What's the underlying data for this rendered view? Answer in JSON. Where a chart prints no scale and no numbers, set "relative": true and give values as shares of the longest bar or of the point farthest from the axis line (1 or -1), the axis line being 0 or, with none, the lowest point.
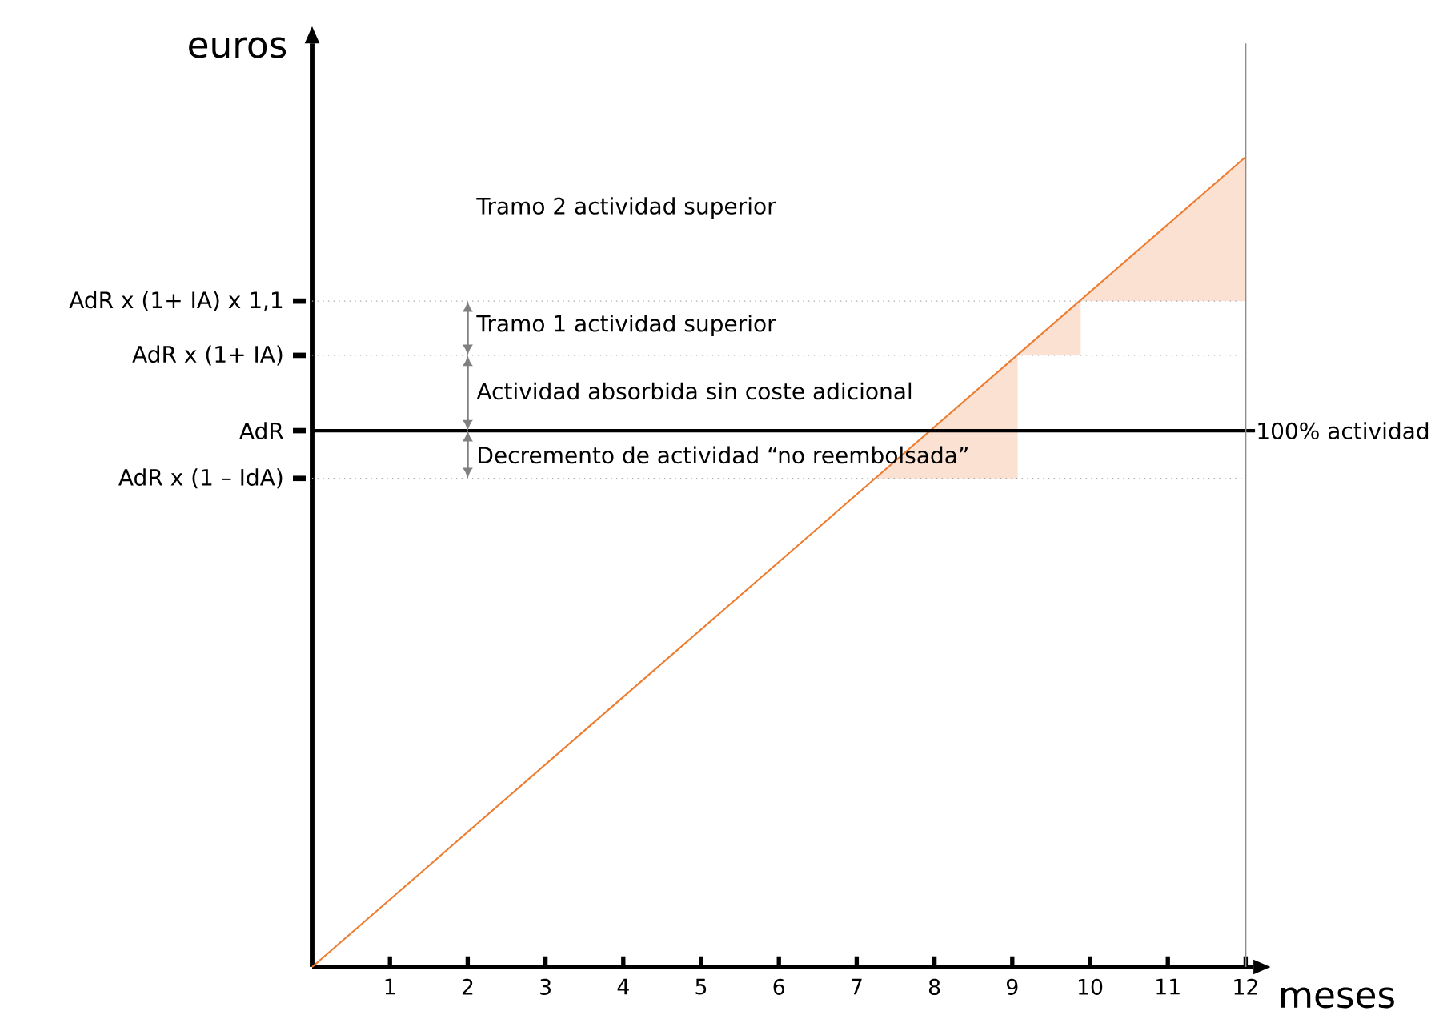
{
  "chart_data": {
    "type": "line",
    "relative": true,
    "xlabel": "meses",
    "ylabel": "euros",
    "xlim": [
      0,
      12.1
    ],
    "xticks": [
      1,
      2,
      3,
      4,
      5,
      6,
      7,
      8,
      9,
      10,
      11,
      12
    ],
    "series": [
      {
        "type": "area",
        "color": "#fbe1d1",
        "x": [
          7.23,
          9.07
        ],
        "values": [
          0.603,
          0.755
        ]
      },
      {
        "type": "area",
        "color": "#fbe1d1",
        "x": [
          9.07,
          9.88
        ],
        "values": [
          0.755,
          0.822
        ]
      },
      {
        "type": "area",
        "color": "#fbe1d1",
        "x": [
          9.88,
          12
        ],
        "values": [
          0.822,
          1
        ]
      },
      {
        "color": "#ed7d31",
        "x": [
          0,
          12
        ],
        "values": [
          0,
          1
        ]
      }
    ],
    "ref_lines": [
      {
        "axis": "y",
        "value": 0.822,
        "label": "AdR x (1+ IA) x 1,1",
        "color": "#a6a6a6",
        "line_style": "dotted"
      },
      {
        "axis": "y",
        "value": 0.755,
        "label": "AdR x (1+ IA)",
        "color": "#a6a6a6",
        "line_style": "dotted"
      },
      {
        "axis": "y",
        "value": 0.662,
        "label": "AdR",
        "color": "#000000",
        "line_style": "solid"
      },
      {
        "axis": "y",
        "value": 0.603,
        "label": "AdR x (1 – IdA)",
        "color": "#a6a6a6",
        "line_style": "dotted"
      },
      {
        "axis": "x",
        "value": 12,
        "color": "#8c8c8c",
        "line_style": "solid"
      }
    ],
    "annotations": [
      "Tramo 2 actividad superior",
      "Tramo 1 actividad superior",
      "Actividad absorbida sin coste adicional",
      "Decremento de actividad “no reembolsada”",
      {
        "text": "100% actividad",
        "x": 12.1,
        "y": 0.662
      }
    ]
  }
}
